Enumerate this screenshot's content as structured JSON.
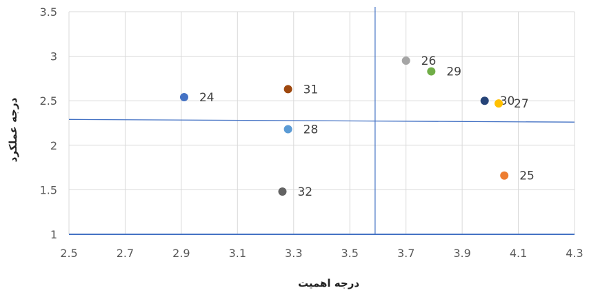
{
  "chart_data": {
    "type": "scatter",
    "title": "",
    "xlabel": "درجه اهمیت",
    "ylabel": "درجه عملکرد",
    "xlim": [
      2.5,
      4.3
    ],
    "ylim": [
      1,
      3.5
    ],
    "x_ticks": [
      "2.5",
      "2.7",
      "2.9",
      "3.1",
      "3.3",
      "3.5",
      "3.7",
      "3.9",
      "4.1",
      "4.3"
    ],
    "y_ticks": [
      "1",
      "1.5",
      "2",
      "2.5",
      "3",
      "3.5"
    ],
    "grid": true,
    "points": [
      {
        "label": "24",
        "x": 2.91,
        "y": 2.54,
        "color": "#4472c4"
      },
      {
        "label": "31",
        "x": 3.28,
        "y": 2.63,
        "color": "#9e480e"
      },
      {
        "label": "28",
        "x": 3.28,
        "y": 2.18,
        "color": "#5b9bd5"
      },
      {
        "label": "32",
        "x": 3.26,
        "y": 1.48,
        "color": "#636363"
      },
      {
        "label": "26",
        "x": 3.7,
        "y": 2.95,
        "color": "#a5a5a5"
      },
      {
        "label": "29",
        "x": 3.79,
        "y": 2.83,
        "color": "#70ad47"
      },
      {
        "label": "30",
        "x": 3.98,
        "y": 2.5,
        "color": "#264478"
      },
      {
        "label": "27",
        "x": 4.03,
        "y": 2.47,
        "color": "#ffc000"
      },
      {
        "label": "25",
        "x": 4.05,
        "y": 1.66,
        "color": "#ed7d31"
      }
    ],
    "reference_lines": {
      "vertical_x": 3.59,
      "horizontal_y_start": 2.29,
      "horizontal_y_end": 2.26,
      "color": "#4472c4"
    }
  }
}
